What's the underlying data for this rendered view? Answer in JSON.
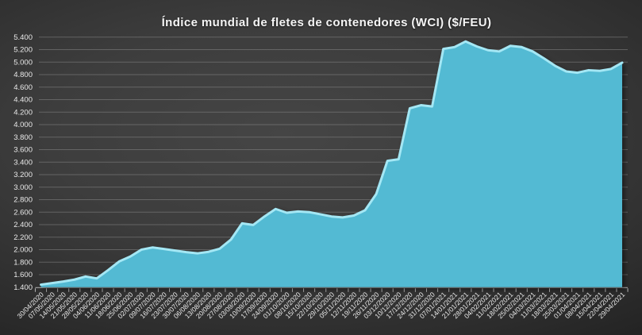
{
  "chart_data": {
    "type": "area",
    "title": "Índice mundial de fletes de contenedores (WCI) ($/FEU)",
    "xlabel": "",
    "ylabel": "",
    "ylim": [
      1400,
      5400
    ],
    "ytick_step": 200,
    "ytick_labels": [
      "1.400",
      "1.600",
      "1.800",
      "2.000",
      "2.200",
      "2.400",
      "2.600",
      "2.800",
      "3.000",
      "3.200",
      "3.400",
      "3.600",
      "3.800",
      "4.000",
      "4.200",
      "4.400",
      "4.600",
      "4.800",
      "5.000",
      "5.200",
      "5.400"
    ],
    "grid": true,
    "legend": "none",
    "x": [
      "30/04/2020",
      "07/05/2020",
      "14/05/2020",
      "21/05/2020",
      "28/05/2020",
      "04/06/2020",
      "11/06/2020",
      "18/06/2020",
      "25/06/2020",
      "02/07/2020",
      "09/07/2020",
      "16/07/2020",
      "23/07/2020",
      "30/07/2020",
      "06/08/2020",
      "13/08/2020",
      "20/08/2020",
      "27/08/2020",
      "03/09/2020",
      "10/09/2020",
      "17/09/2020",
      "24/09/2020",
      "01/10/2020",
      "08/10/2020",
      "15/10/2020",
      "22/10/2020",
      "29/10/2020",
      "05/11/2020",
      "12/11/2020",
      "19/11/2020",
      "26/11/2020",
      "03/12/2020",
      "10/12/2020",
      "17/12/2020",
      "24/12/2020",
      "31/12/2020",
      "07/01/2021",
      "14/01/2021",
      "21/01/2021",
      "28/01/2021",
      "04/02/2021",
      "11/02/2021",
      "18/02/2021",
      "25/02/2021",
      "04/03/2021",
      "11/03/2021",
      "18/03/2021",
      "25/03/2021",
      "01/04/2021",
      "08/04/2021",
      "15/04/2021",
      "22/04/2021",
      "29/04/2021"
    ],
    "values": [
      1440,
      1465,
      1490,
      1520,
      1570,
      1540,
      1670,
      1810,
      1890,
      2000,
      2035,
      2010,
      1985,
      1960,
      1940,
      1965,
      2015,
      2160,
      2420,
      2395,
      2530,
      2650,
      2590,
      2610,
      2600,
      2565,
      2530,
      2515,
      2545,
      2630,
      2890,
      3420,
      3445,
      4260,
      4310,
      4290,
      5210,
      5240,
      5330,
      5250,
      5190,
      5170,
      5260,
      5240,
      5170,
      5060,
      4940,
      4850,
      4830,
      4870,
      4860,
      4890,
      4990
    ],
    "colors": {
      "area_fill": "#53bad3",
      "area_edge": "#a4e7f4",
      "gridline": "#8c8c8c",
      "axis_line": "#a8a8a8",
      "tick": "#b8b8b8",
      "label_text": "#e9e9e9",
      "title_text": "#f5f5f5"
    }
  }
}
